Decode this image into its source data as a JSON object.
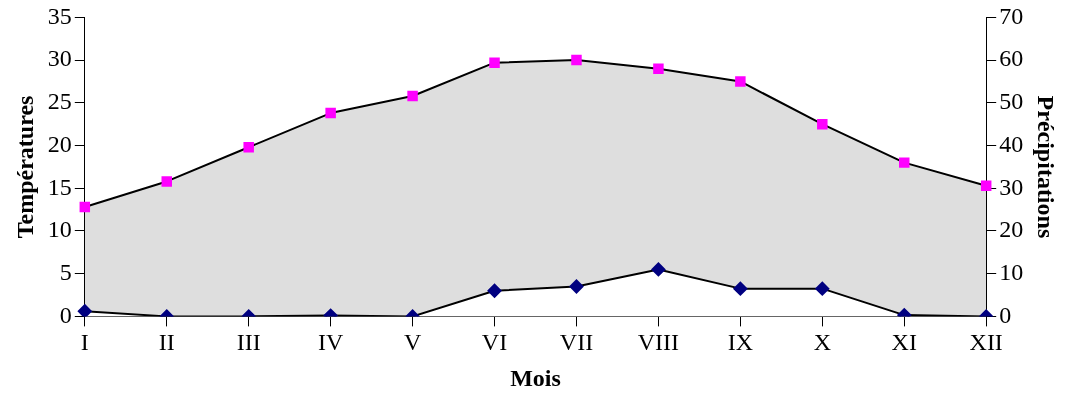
{
  "chart_data": {
    "type": "line",
    "xlabel": "Mois",
    "ylabel": "Températures",
    "y2label": "Précipitations",
    "categories": [
      "I",
      "II",
      "III",
      "IV",
      "V",
      "VI",
      "VII",
      "VIII",
      "IX",
      "X",
      "XI",
      "XII"
    ],
    "series": [
      {
        "type": "area",
        "color": "#ff00ff",
        "marker": "square",
        "values": [
          12.8,
          15.8,
          19.8,
          23.8,
          25.8,
          29.7,
          30,
          29,
          27.5,
          22.5,
          18,
          15.3
        ]
      },
      {
        "type": "line",
        "axis": "y2",
        "color": "#000080",
        "marker": "diamond",
        "values": [
          1.2,
          0,
          0,
          0.2,
          0,
          6,
          7,
          11,
          6.5,
          6.5,
          0.3,
          0
        ]
      }
    ],
    "ylim": [
      0,
      35
    ],
    "yticks": [
      0,
      5,
      10,
      15,
      20,
      25,
      30,
      35
    ],
    "y2lim": [
      0,
      70
    ],
    "y2ticks": [
      0,
      10,
      20,
      30,
      40,
      50,
      60,
      70
    ],
    "grid": false,
    "legend": false
  }
}
